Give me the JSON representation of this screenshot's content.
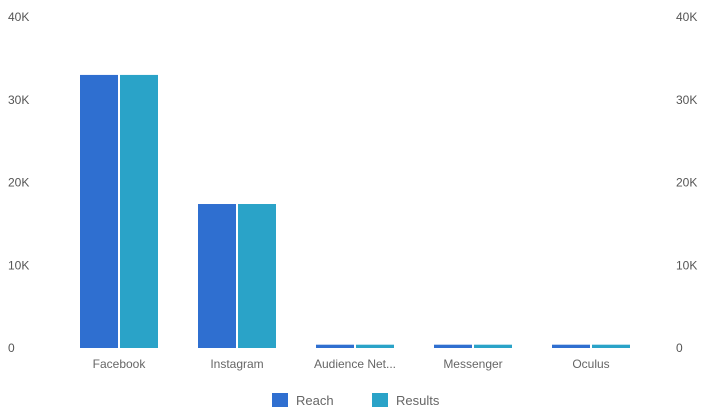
{
  "chart_data": {
    "type": "bar",
    "title": "",
    "xlabel": "",
    "ylabel": "",
    "categories": [
      "Facebook",
      "Instagram",
      "Audience Net...",
      "Messenger",
      "Oculus"
    ],
    "series": [
      {
        "name": "Reach",
        "color": "#2f6fd0",
        "values": [
          33000,
          17400,
          400,
          400,
          400
        ]
      },
      {
        "name": "Results",
        "color": "#2aa3c8",
        "values": [
          33000,
          17400,
          400,
          400,
          400
        ]
      }
    ],
    "ylim": [
      0,
      40000
    ],
    "y_ticks": [
      0,
      10000,
      20000,
      30000,
      40000
    ],
    "y_tick_labels_left": [
      "0",
      "10K",
      "20K",
      "30K",
      "40K"
    ],
    "y_tick_labels_right": [
      "0",
      "10K",
      "20K",
      "30K",
      "40K"
    ],
    "grid": false,
    "legend_position": "bottom-center"
  }
}
